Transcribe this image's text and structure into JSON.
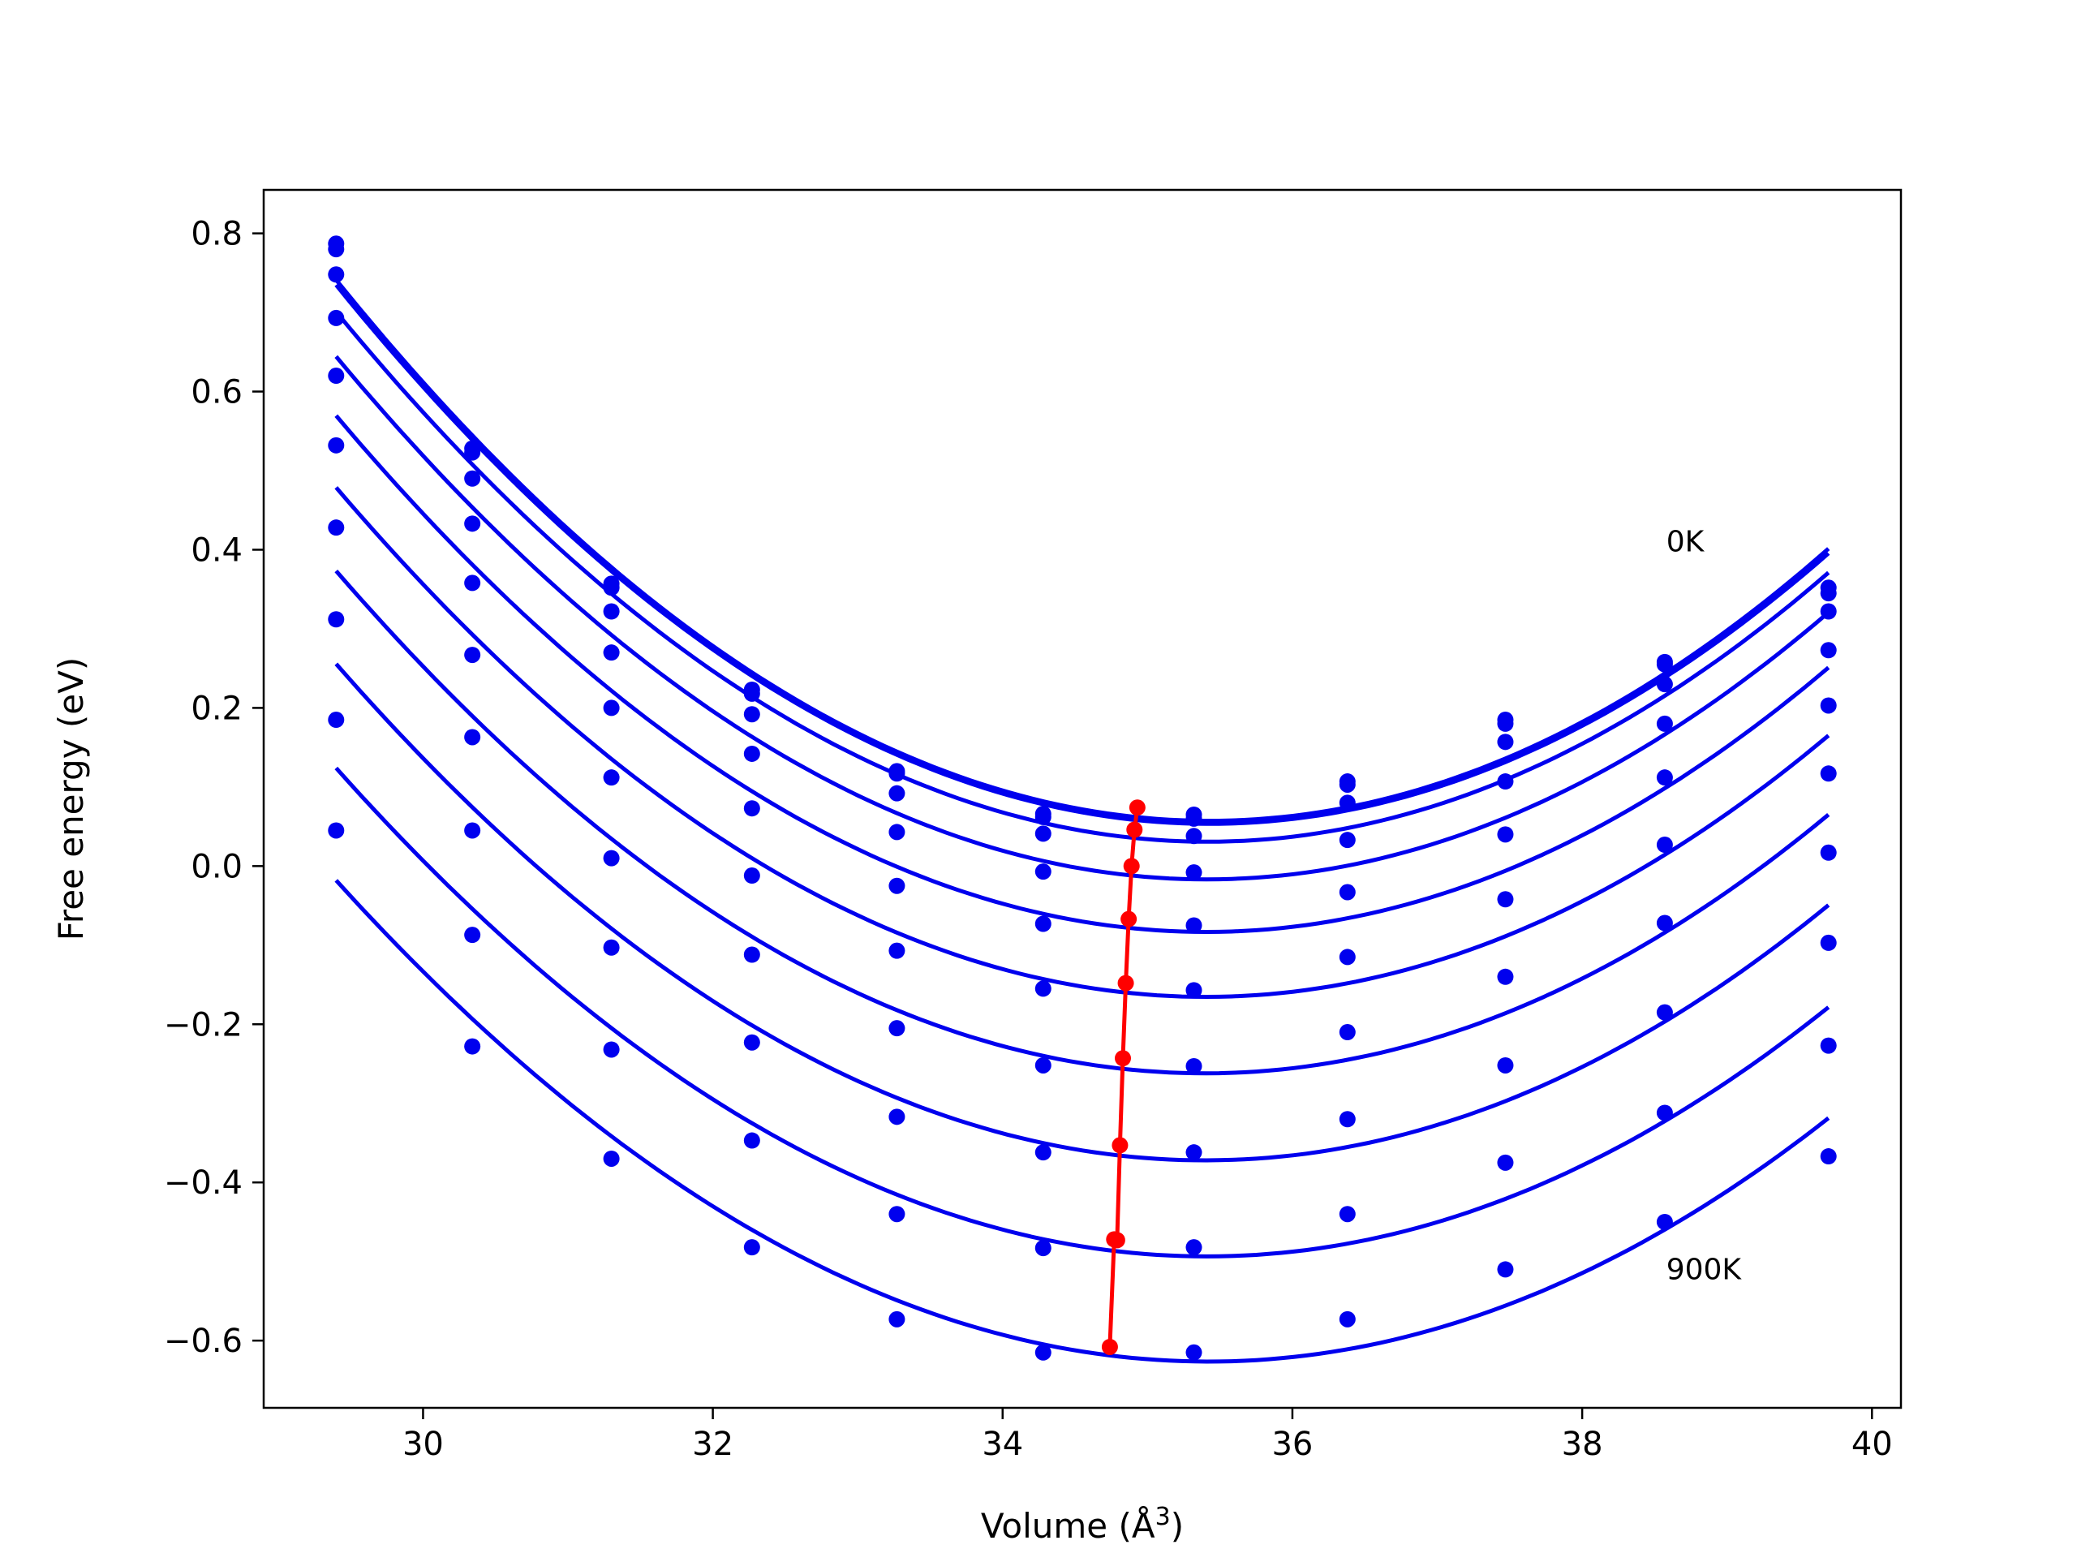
{
  "chart_data": {
    "type": "line",
    "title": "",
    "xlabel": "Volume (Å",
    "xlabel_sup": "3",
    "xlabel_close": ")",
    "ylabel": "Free energy (eV)",
    "xlim": [
      28.9,
      40.2
    ],
    "ylim": [
      -0.685,
      0.855
    ],
    "xticks": [
      30,
      32,
      34,
      36,
      38,
      40
    ],
    "yticks": [
      0.8,
      0.6,
      0.4,
      0.2,
      0.0,
      -0.2,
      -0.4,
      -0.6
    ],
    "ytick_labels": [
      "0.8",
      "0.6",
      "0.4",
      "0.2",
      "0.0",
      "−0.2",
      "−0.4",
      "−0.6"
    ],
    "grid": false,
    "legend": "none",
    "series_color": "#0000ee",
    "minimum_line_color": "#ff0000",
    "annotations": [
      {
        "text": "0K",
        "x": 38.58,
        "y": 0.41
      },
      {
        "text": "900K",
        "x": 38.58,
        "y": -0.51
      }
    ],
    "x": [
      29.4,
      30.34,
      31.3,
      32.27,
      33.27,
      34.28,
      35.32,
      36.38,
      37.47,
      38.57,
      39.7
    ],
    "series": [
      {
        "values": [
          0.787,
          0.528,
          0.357,
          0.223,
          0.12,
          0.066,
          0.065,
          0.107,
          0.185,
          0.258,
          0.352
        ]
      },
      {
        "values": [
          0.78,
          0.523,
          0.352,
          0.218,
          0.117,
          0.062,
          0.06,
          0.103,
          0.18,
          0.255,
          0.345
        ]
      },
      {
        "values": [
          0.748,
          0.49,
          0.322,
          0.192,
          0.092,
          0.041,
          0.038,
          0.08,
          0.157,
          0.23,
          0.322
        ]
      },
      {
        "values": [
          0.693,
          0.433,
          0.27,
          0.142,
          0.043,
          -0.007,
          -0.008,
          0.033,
          0.107,
          0.18,
          0.273
        ]
      },
      {
        "values": [
          0.62,
          0.358,
          0.2,
          0.073,
          -0.025,
          -0.073,
          -0.075,
          -0.033,
          0.04,
          0.112,
          0.203
        ]
      },
      {
        "values": [
          0.532,
          0.267,
          0.112,
          -0.012,
          -0.107,
          -0.155,
          -0.157,
          -0.115,
          -0.042,
          0.027,
          0.117
        ]
      },
      {
        "values": [
          0.428,
          0.163,
          0.01,
          -0.112,
          -0.205,
          -0.252,
          -0.253,
          -0.21,
          -0.14,
          -0.072,
          0.017
        ]
      },
      {
        "values": [
          0.312,
          0.045,
          -0.103,
          -0.223,
          -0.317,
          -0.362,
          -0.362,
          -0.32,
          -0.252,
          -0.185,
          -0.097
        ]
      },
      {
        "values": [
          0.185,
          -0.087,
          -0.232,
          -0.347,
          -0.44,
          -0.483,
          -0.482,
          -0.44,
          -0.375,
          -0.312,
          -0.227
        ]
      },
      {
        "values": [
          0.045,
          -0.228,
          -0.37,
          -0.482,
          -0.573,
          -0.615,
          -0.615,
          -0.573,
          -0.51,
          -0.45,
          -0.367
        ]
      }
    ],
    "minimum_points": {
      "x": [
        34.93,
        34.91,
        34.89,
        34.87,
        34.85,
        34.83,
        34.81,
        34.79,
        34.77,
        34.74
      ],
      "y": [
        0.074,
        0.046,
        0.0,
        -0.067,
        -0.148,
        -0.243,
        -0.353,
        -0.473,
        -0.472,
        -0.608
      ]
    }
  }
}
